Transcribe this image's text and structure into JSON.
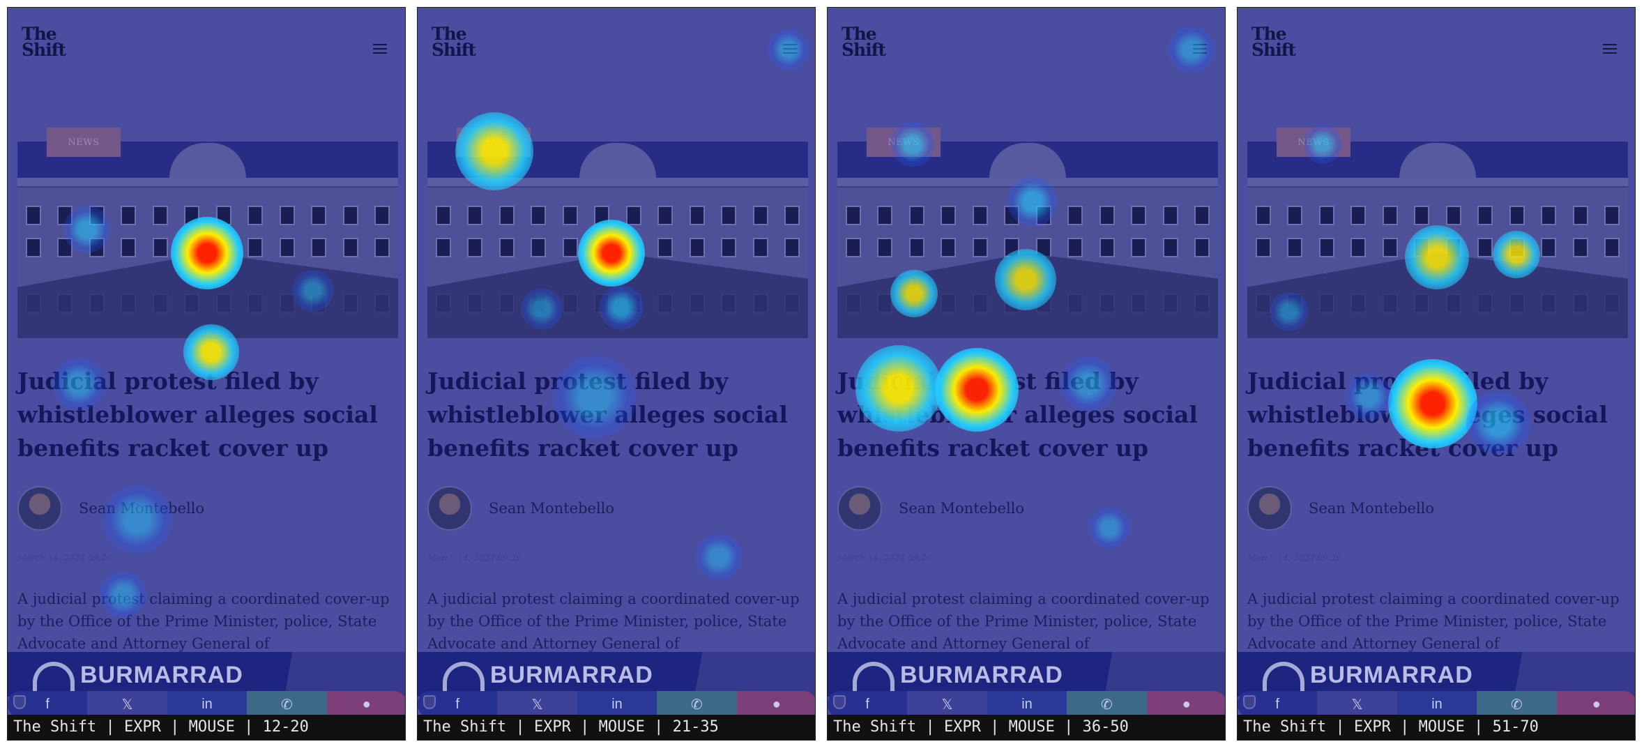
{
  "site": {
    "logo": "The Shift",
    "logo_line1": "The",
    "logo_line2": "Shift"
  },
  "article": {
    "category": "NEWS",
    "headline": "Judicial protest filed by whistleblower alleges social benefits racket cover up",
    "author": "Sean Montebello",
    "date": "March 14, 2024 09:26",
    "excerpt": "A judicial protest claiming a coordinated cover-up by the Office of the Prime Minister, police, State Advocate and Attorney General of"
  },
  "ad": {
    "text": "BURMARRAD"
  },
  "share": {
    "facebook_icon": "f",
    "x_icon": "𝕏",
    "linkedin_icon": "in",
    "whatsapp_icon": "✆",
    "reddit_icon": "●"
  },
  "panels": [
    {
      "caption": "The Shift | EXPR | MOUSE | 12-20"
    },
    {
      "caption": "The Shift | EXPR | MOUSE | 21-35"
    },
    {
      "caption": "The Shift | EXPR | MOUSE | 36-50"
    },
    {
      "caption": "The Shift | EXPR | MOUSE | 51-70"
    }
  ],
  "colors": {
    "overlay": "#4b4ea0",
    "heat_hot": "#ff2200",
    "heat_warm": "#ffee00",
    "heat_cool": "#22ccff"
  }
}
